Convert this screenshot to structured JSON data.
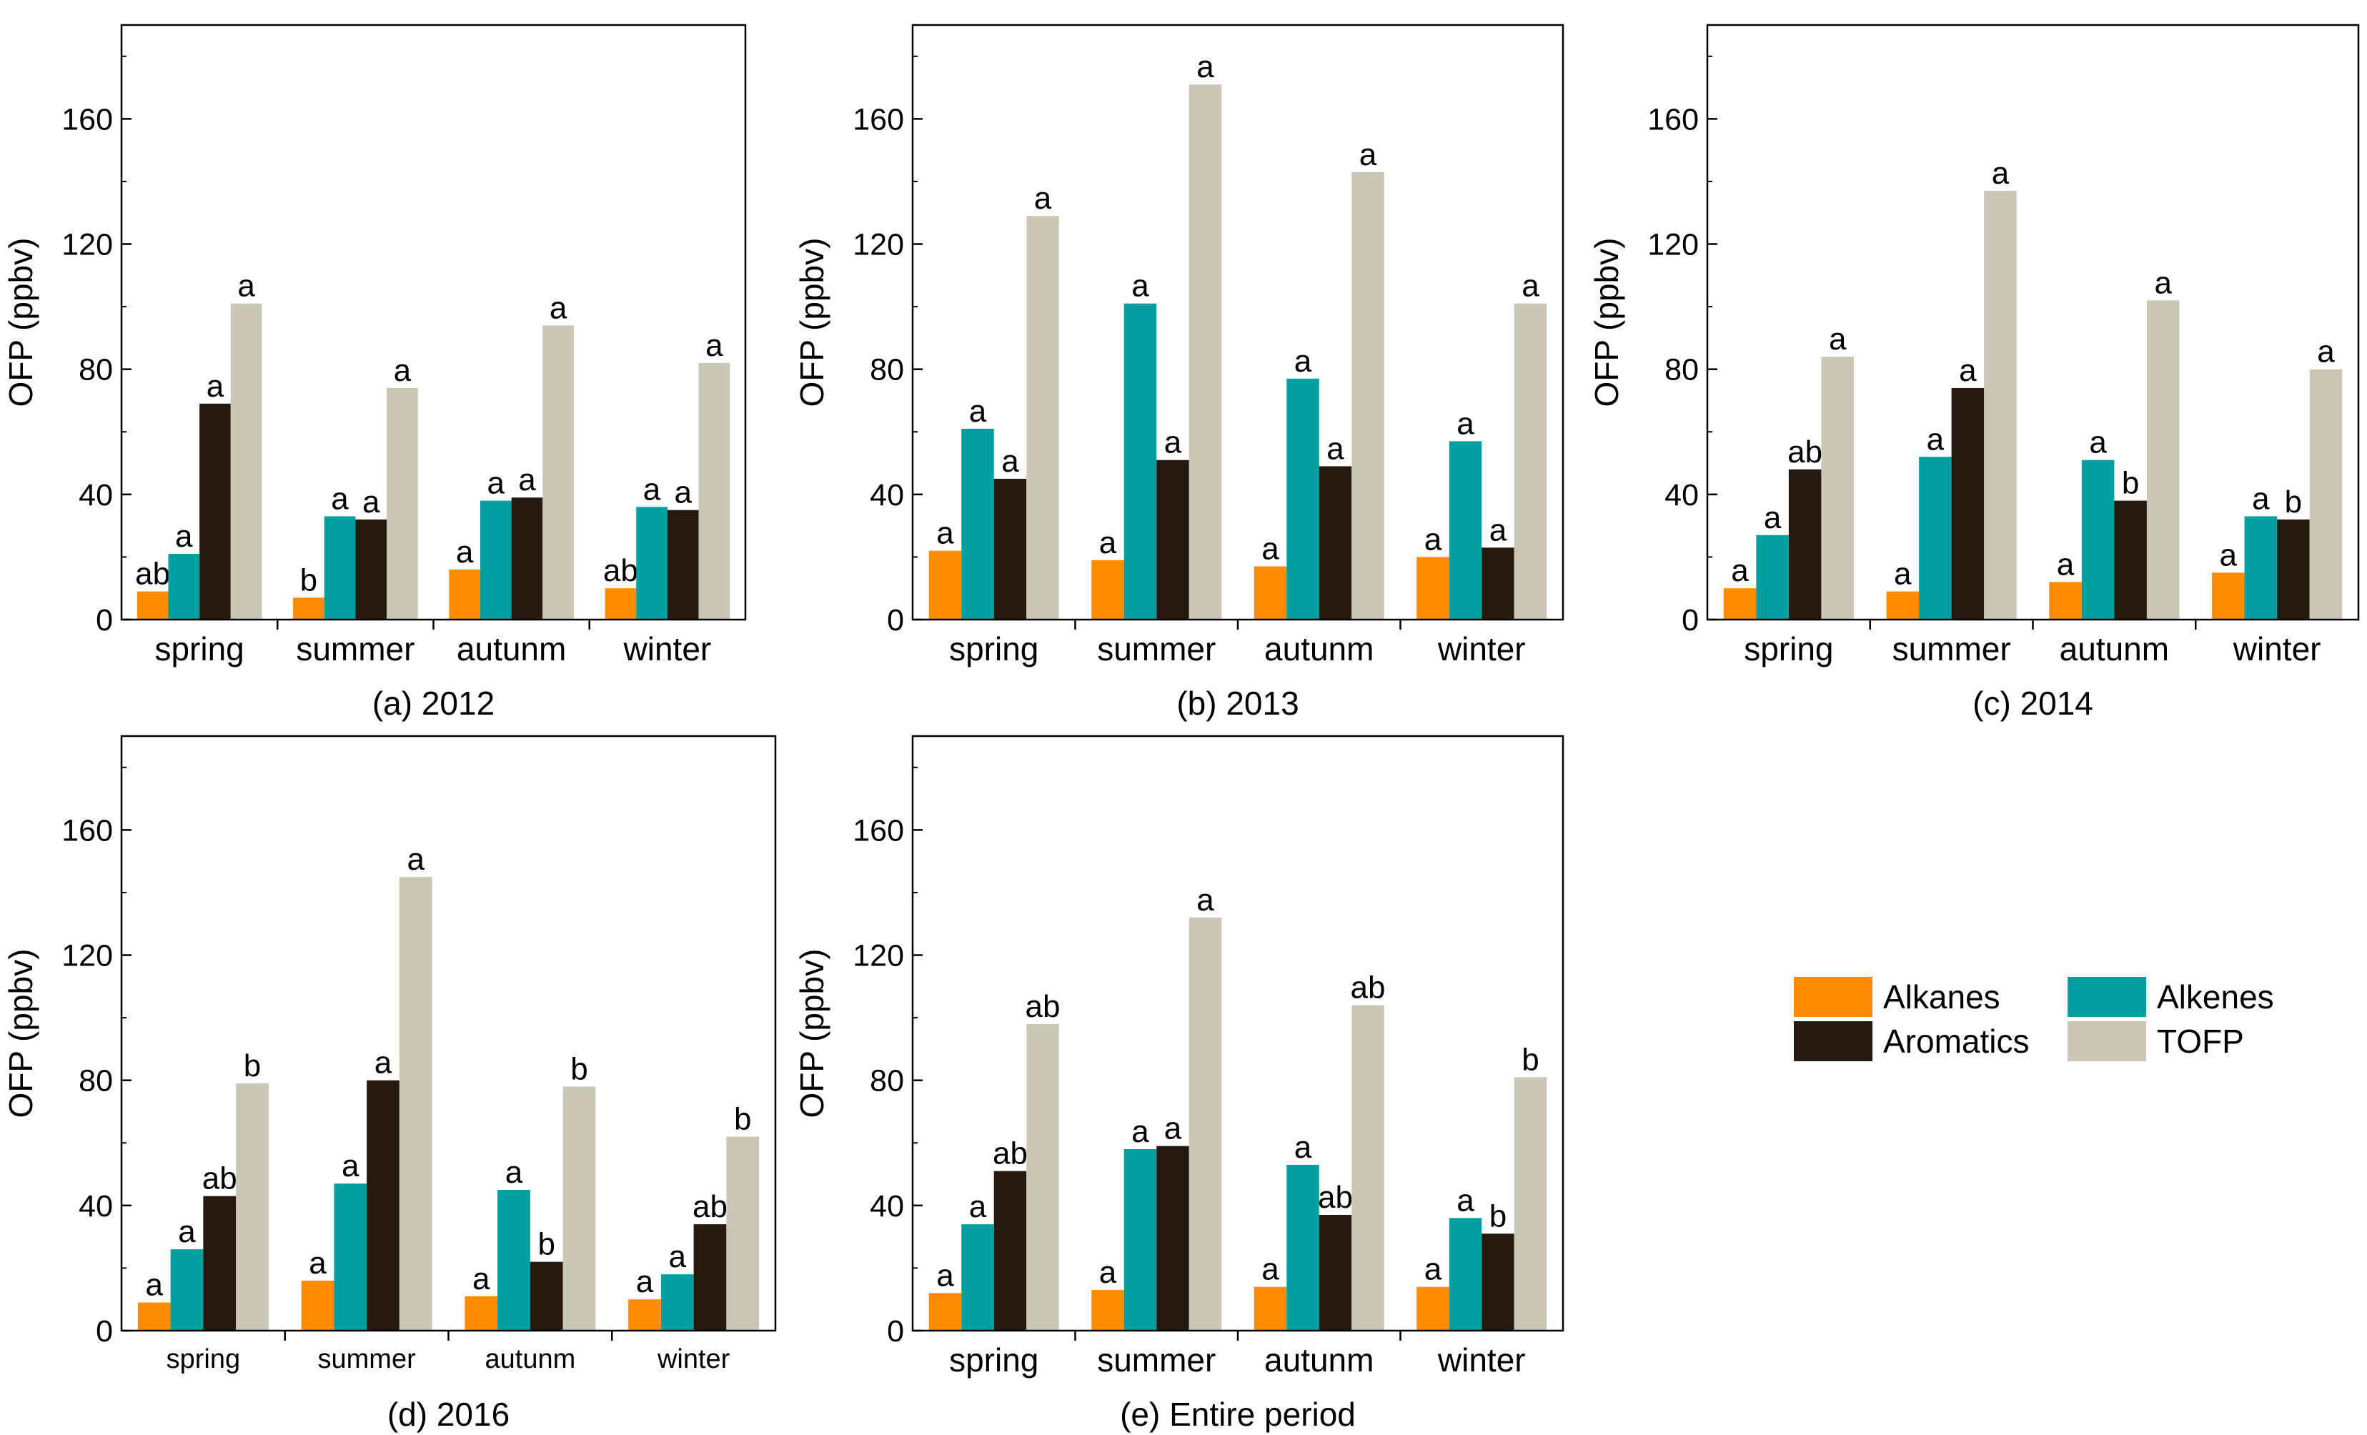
{
  "figure": {
    "legend": {
      "placement": "right, beside panel (e)",
      "items": [
        {
          "name": "Alkanes",
          "color": "#ff8c00"
        },
        {
          "name": "Alkenes",
          "color": "#00a0a0"
        },
        {
          "name": "Aromatics",
          "color": "#261a10"
        },
        {
          "name": "TOFP",
          "color": "#cbc7b7"
        }
      ]
    }
  },
  "chart_data": [
    {
      "type": "bar",
      "caption": "(a) 2012",
      "ylabel": "OFP (ppbv)",
      "ylim": [
        0,
        190
      ],
      "yticks": [
        "0",
        "40",
        "80",
        "120",
        "160"
      ],
      "categories": [
        "spring",
        "summer",
        "autunm",
        "winter"
      ],
      "series": [
        {
          "name": "Alkanes",
          "values": [
            9,
            7,
            16,
            10
          ],
          "labels": [
            "ab",
            "b",
            "a",
            "ab"
          ]
        },
        {
          "name": "Alkenes",
          "values": [
            21,
            33,
            38,
            36
          ],
          "labels": [
            "a",
            "a",
            "a",
            "a"
          ]
        },
        {
          "name": "Aromatics",
          "values": [
            69,
            32,
            39,
            35
          ],
          "labels": [
            "a",
            "a",
            "a",
            "a"
          ]
        },
        {
          "name": "TOFP",
          "values": [
            101,
            74,
            94,
            82
          ],
          "labels": [
            "a",
            "a",
            "a",
            "a"
          ]
        }
      ]
    },
    {
      "type": "bar",
      "caption": "(b) 2013",
      "ylabel": "OFP (ppbv)",
      "ylim": [
        0,
        190
      ],
      "yticks": [
        "0",
        "40",
        "80",
        "120",
        "160"
      ],
      "categories": [
        "spring",
        "summer",
        "autunm",
        "winter"
      ],
      "series": [
        {
          "name": "Alkanes",
          "values": [
            22,
            19,
            17,
            20
          ],
          "labels": [
            "a",
            "a",
            "a",
            "a"
          ]
        },
        {
          "name": "Alkenes",
          "values": [
            61,
            101,
            77,
            57
          ],
          "labels": [
            "a",
            "a",
            "a",
            "a"
          ]
        },
        {
          "name": "Aromatics",
          "values": [
            45,
            51,
            49,
            23
          ],
          "labels": [
            "a",
            "a",
            "a",
            "a"
          ]
        },
        {
          "name": "TOFP",
          "values": [
            129,
            171,
            143,
            101
          ],
          "labels": [
            "a",
            "a",
            "a",
            "a"
          ]
        }
      ]
    },
    {
      "type": "bar",
      "caption": "(c) 2014",
      "ylabel": "OFP (ppbv)",
      "ylim": [
        0,
        190
      ],
      "yticks": [
        "0",
        "40",
        "80",
        "120",
        "160"
      ],
      "categories": [
        "spring",
        "summer",
        "autunm",
        "winter"
      ],
      "series": [
        {
          "name": "Alkanes",
          "values": [
            10,
            9,
            12,
            15
          ],
          "labels": [
            "a",
            "a",
            "a",
            "a"
          ]
        },
        {
          "name": "Alkenes",
          "values": [
            27,
            52,
            51,
            33
          ],
          "labels": [
            "a",
            "a",
            "a",
            "a"
          ]
        },
        {
          "name": "Aromatics",
          "values": [
            48,
            74,
            38,
            32
          ],
          "labels": [
            "ab",
            "a",
            "b",
            "b"
          ]
        },
        {
          "name": "TOFP",
          "values": [
            84,
            137,
            102,
            80
          ],
          "labels": [
            "a",
            "a",
            "a",
            "a"
          ]
        }
      ]
    },
    {
      "type": "bar",
      "caption": "(d) 2016",
      "ylabel": "OFP (ppbv)",
      "ylim": [
        0,
        190
      ],
      "yticks": [
        "0",
        "40",
        "80",
        "120",
        "160"
      ],
      "small_category_labels": true,
      "categories": [
        "spring",
        "summer",
        "autunm",
        "winter"
      ],
      "series": [
        {
          "name": "Alkanes",
          "values": [
            9,
            16,
            11,
            10
          ],
          "labels": [
            "a",
            "a",
            "a",
            "a"
          ]
        },
        {
          "name": "Alkenes",
          "values": [
            26,
            47,
            45,
            18
          ],
          "labels": [
            "a",
            "a",
            "a",
            "a"
          ]
        },
        {
          "name": "Aromatics",
          "values": [
            43,
            80,
            22,
            34
          ],
          "labels": [
            "ab",
            "a",
            "b",
            "ab"
          ]
        },
        {
          "name": "TOFP",
          "values": [
            79,
            145,
            78,
            62
          ],
          "labels": [
            "b",
            "a",
            "b",
            "b"
          ]
        }
      ]
    },
    {
      "type": "bar",
      "caption": "(e) Entire period",
      "ylabel": "OFP (ppbv)",
      "ylim": [
        0,
        190
      ],
      "yticks": [
        "0",
        "40",
        "80",
        "120",
        "160"
      ],
      "categories": [
        "spring",
        "summer",
        "autunm",
        "winter"
      ],
      "series": [
        {
          "name": "Alkanes",
          "values": [
            12,
            13,
            14,
            14
          ],
          "labels": [
            "a",
            "a",
            "a",
            "a"
          ]
        },
        {
          "name": "Alkenes",
          "values": [
            34,
            58,
            53,
            36
          ],
          "labels": [
            "a",
            "a",
            "a",
            "a"
          ]
        },
        {
          "name": "Aromatics",
          "values": [
            51,
            59,
            37,
            31
          ],
          "labels": [
            "ab",
            "a",
            "ab",
            "b"
          ]
        },
        {
          "name": "TOFP",
          "values": [
            98,
            132,
            104,
            81
          ],
          "labels": [
            "ab",
            "a",
            "ab",
            "b"
          ]
        }
      ]
    }
  ]
}
